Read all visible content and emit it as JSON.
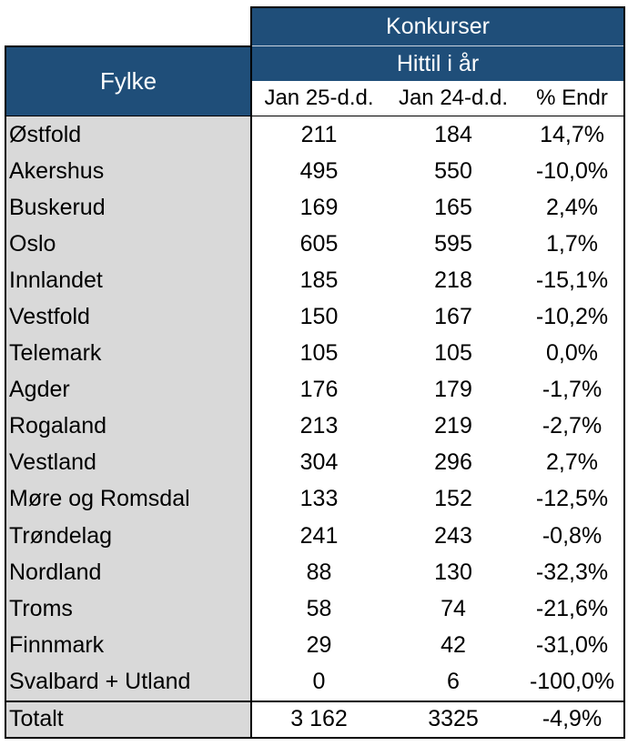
{
  "header": {
    "group_title": "Konkurser",
    "sub_title": "Hittil i år",
    "fylke_label": "Fylke",
    "columns": [
      "Jan 25-d.d.",
      "Jan 24-d.d.",
      "% Endr"
    ]
  },
  "rows": [
    {
      "fylke": "Østfold",
      "jan25": "211",
      "jan24": "184",
      "endr": "14,7%"
    },
    {
      "fylke": "Akershus",
      "jan25": "495",
      "jan24": "550",
      "endr": "-10,0%"
    },
    {
      "fylke": "Buskerud",
      "jan25": "169",
      "jan24": "165",
      "endr": "2,4%"
    },
    {
      "fylke": "Oslo",
      "jan25": "605",
      "jan24": "595",
      "endr": "1,7%"
    },
    {
      "fylke": "Innlandet",
      "jan25": "185",
      "jan24": "218",
      "endr": "-15,1%"
    },
    {
      "fylke": "Vestfold",
      "jan25": "150",
      "jan24": "167",
      "endr": "-10,2%"
    },
    {
      "fylke": "Telemark",
      "jan25": "105",
      "jan24": "105",
      "endr": "0,0%"
    },
    {
      "fylke": "Agder",
      "jan25": "176",
      "jan24": "179",
      "endr": "-1,7%"
    },
    {
      "fylke": "Rogaland",
      "jan25": "213",
      "jan24": "219",
      "endr": "-2,7%"
    },
    {
      "fylke": "Vestland",
      "jan25": "304",
      "jan24": "296",
      "endr": "2,7%"
    },
    {
      "fylke": "Møre og Romsdal",
      "jan25": "133",
      "jan24": "152",
      "endr": "-12,5%"
    },
    {
      "fylke": "Trøndelag",
      "jan25": "241",
      "jan24": "243",
      "endr": "-0,8%"
    },
    {
      "fylke": "Nordland",
      "jan25": "88",
      "jan24": "130",
      "endr": "-32,3%"
    },
    {
      "fylke": "Troms",
      "jan25": "58",
      "jan24": "74",
      "endr": "-21,6%"
    },
    {
      "fylke": "Finnmark",
      "jan25": "29",
      "jan24": "42",
      "endr": "-31,0%"
    },
    {
      "fylke": "Svalbard + Utland",
      "jan25": "0",
      "jan24": "6",
      "endr": "-100,0%"
    }
  ],
  "total": {
    "fylke": "Totalt",
    "jan25": "3 162",
    "jan24": "3325",
    "endr": "-4,9%"
  },
  "colors": {
    "header_blue": "#1f4e79",
    "name_column_gray": "#d9d9d9"
  }
}
